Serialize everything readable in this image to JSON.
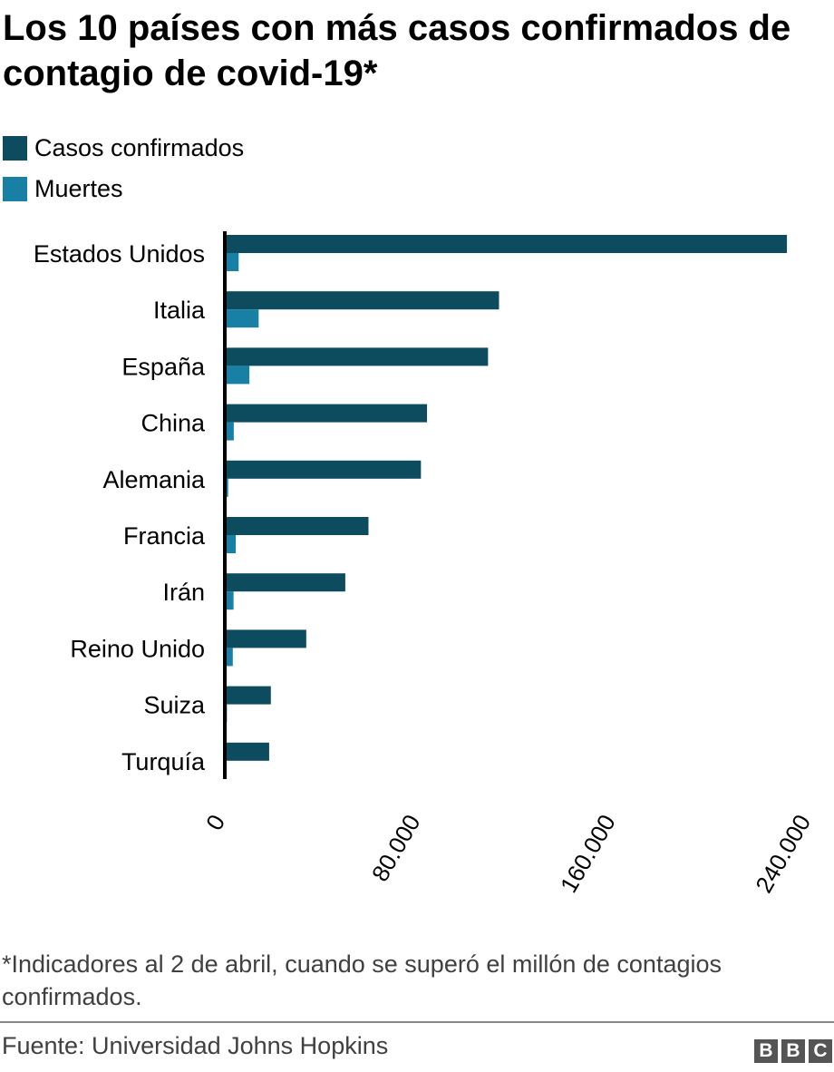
{
  "title": "Los 10 países con más casos confirmados de contagio de covid-19*",
  "chart_data": {
    "type": "bar",
    "orientation": "horizontal",
    "title": "Los 10 países con más casos confirmados de contagio de covid-19*",
    "categories": [
      "Estados Unidos",
      "Italia",
      "España",
      "China",
      "Alemania",
      "Francia",
      "Irán",
      "Reino Unido",
      "Suiza",
      "Turquía"
    ],
    "series": [
      {
        "name": "Casos confirmados",
        "color": "#0d4b5e",
        "values": [
          230000,
          112000,
          107500,
          82500,
          80000,
          58500,
          49000,
          33000,
          18500,
          17800
        ]
      },
      {
        "name": "Muertes",
        "color": "#1880a5",
        "values": [
          5300,
          13500,
          9700,
          3300,
          1000,
          4100,
          3200,
          2900,
          500,
          350
        ]
      }
    ],
    "xlim": [
      0,
      240000
    ],
    "xticks": [
      0,
      80000,
      160000,
      240000
    ],
    "xtick_labels": [
      "0",
      "80.000",
      "160.000",
      "240.000"
    ],
    "legend": "top-left",
    "grid": false
  },
  "legend": [
    "Casos confirmados",
    "Muertes"
  ],
  "footnote": "*Indicadores al 2 de abril, cuando se superó el millón de contagios confirmados.",
  "source": "Fuente: Universidad Johns Hopkins",
  "logo": [
    "B",
    "B",
    "C"
  ]
}
